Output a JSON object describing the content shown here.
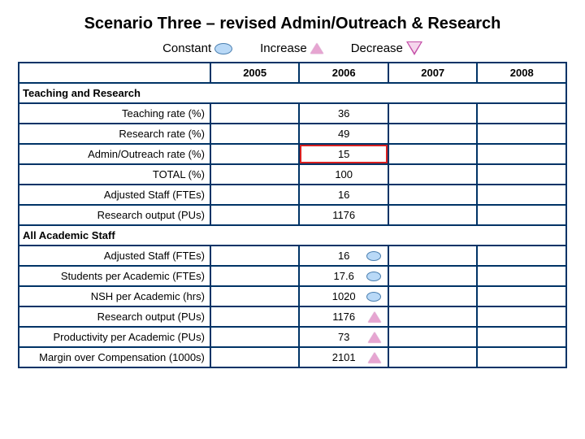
{
  "title": "Scenario Three – revised Admin/Outreach & Research",
  "legend": {
    "constant": "Constant",
    "increase": "Increase",
    "decrease": "Decrease"
  },
  "years": [
    "2005",
    "2006",
    "2007",
    "2008"
  ],
  "sections": {
    "teaching_research": {
      "header": "Teaching and Research",
      "rows": [
        {
          "label": "Teaching rate (%)",
          "v2006": "36",
          "indicator": null,
          "highlight": false
        },
        {
          "label": "Research rate (%)",
          "v2006": "49",
          "indicator": null,
          "highlight": false
        },
        {
          "label": "Admin/Outreach rate (%)",
          "v2006": "15",
          "indicator": null,
          "highlight": true
        },
        {
          "label": "TOTAL (%)",
          "v2006": "100",
          "indicator": null,
          "highlight": false
        },
        {
          "label": "Adjusted Staff (FTEs)",
          "v2006": "16",
          "indicator": null,
          "highlight": false
        },
        {
          "label": "Research output (PUs)",
          "v2006": "1176",
          "indicator": null,
          "highlight": false
        }
      ]
    },
    "all_academic": {
      "header": "All Academic Staff",
      "rows": [
        {
          "label": "Adjusted Staff (FTEs)",
          "v2006": "16",
          "indicator": "constant",
          "highlight": false
        },
        {
          "label": "Students per Academic (FTEs)",
          "v2006": "17.6",
          "indicator": "constant",
          "highlight": false
        },
        {
          "label": "NSH per Academic (hrs)",
          "v2006": "1020",
          "indicator": "constant",
          "highlight": false
        },
        {
          "label": "Research output (PUs)",
          "v2006": "1176",
          "indicator": "increase",
          "highlight": false
        },
        {
          "label": "Productivity per Academic (PUs)",
          "v2006": "73",
          "indicator": "increase",
          "highlight": false
        },
        {
          "label": "Margin over Compensation (1000s)",
          "v2006": "2101",
          "indicator": "increase",
          "highlight": false
        }
      ]
    }
  },
  "colors": {
    "border": "#003366",
    "highlight": "#D92020",
    "constant_fill": "#B9D9F7",
    "increase_fill": "#E6A5D1",
    "decrease_stroke": "#C44FA8"
  }
}
